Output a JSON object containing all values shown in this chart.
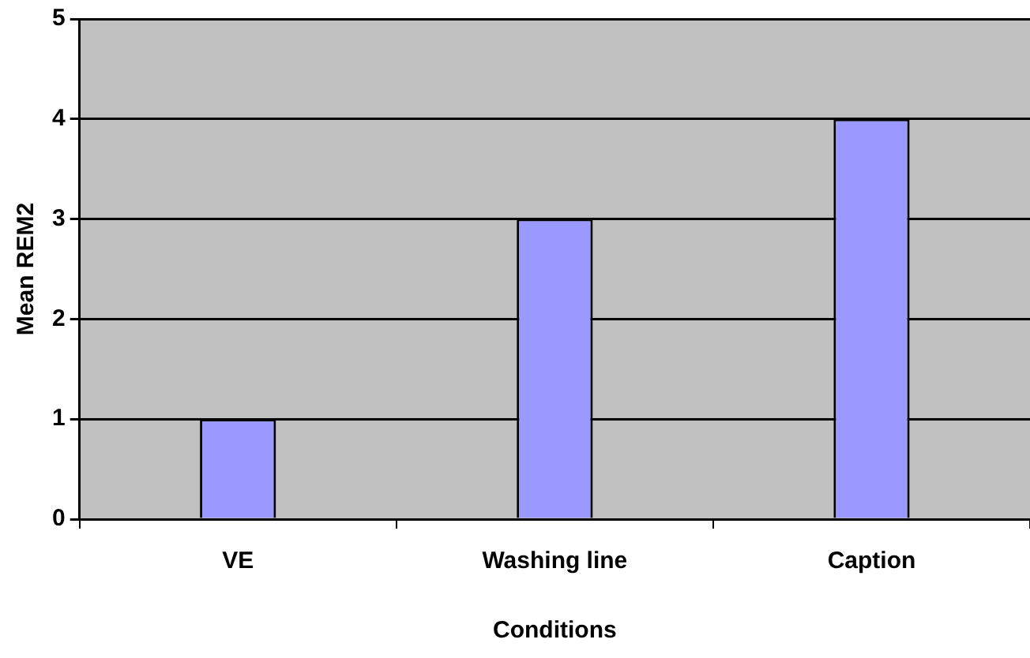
{
  "chart_data": {
    "type": "bar",
    "xlabel": "Conditions",
    "ylabel": "Mean REM2",
    "categories": [
      "VE",
      "Washing line",
      "Caption"
    ],
    "values": [
      1,
      3,
      4
    ],
    "color": "#9999ff",
    "ylim": [
      0,
      5
    ],
    "yticks": [
      0,
      1,
      2,
      3,
      4,
      5
    ],
    "grid": "y"
  }
}
